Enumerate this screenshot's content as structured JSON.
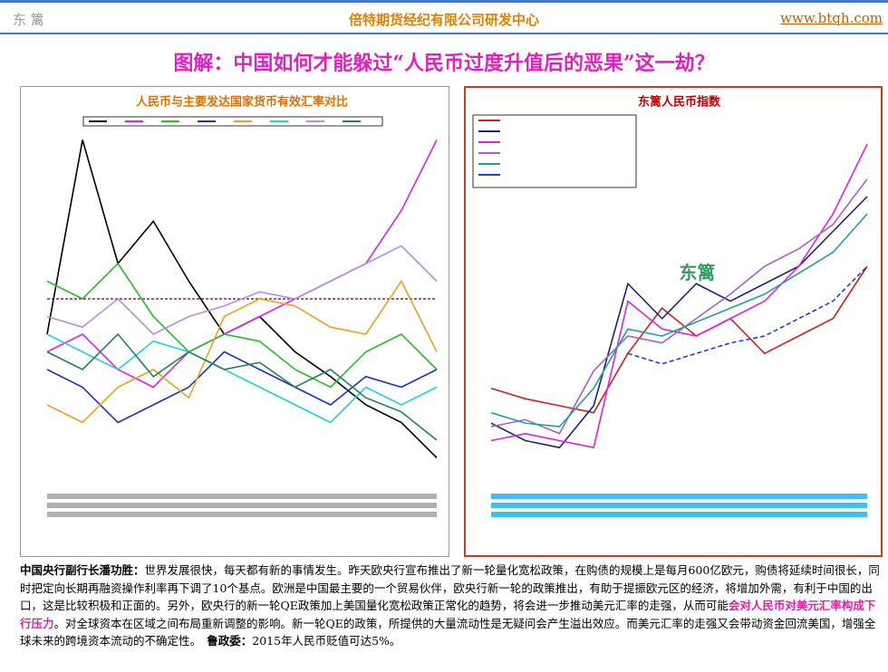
{
  "header": {
    "left": "东 篱",
    "center": "倍特期货经纪有限公司研发中心",
    "right": "www.btqh.com"
  },
  "title": "图解：中国如何才能躲过“人民币过度升值后的恶果”这一劫？",
  "chart_data": [
    {
      "type": "line",
      "title": "人民币与主要发达国家货币有效汇率对比",
      "ylim": [
        0,
        100
      ],
      "reference": 50,
      "reference_color": "#8b2252",
      "series": [
        {
          "color": "#000000",
          "values": [
            40,
            95,
            60,
            72,
            55,
            40,
            45,
            35,
            28,
            20,
            15,
            5
          ]
        },
        {
          "color": "#e020e0",
          "values": [
            35,
            40,
            30,
            25,
            35,
            40,
            45,
            50,
            55,
            60,
            75,
            95
          ]
        },
        {
          "color": "#20c020",
          "values": [
            55,
            50,
            60,
            45,
            35,
            40,
            38,
            30,
            25,
            35,
            40,
            30
          ]
        },
        {
          "color": "#2030c0",
          "values": [
            30,
            25,
            15,
            20,
            25,
            35,
            30,
            25,
            20,
            28,
            25,
            30
          ]
        },
        {
          "color": "#f0a020",
          "values": [
            20,
            15,
            25,
            30,
            22,
            45,
            50,
            48,
            42,
            40,
            55,
            35
          ]
        },
        {
          "color": "#20d0e0",
          "values": [
            40,
            35,
            30,
            38,
            35,
            30,
            25,
            20,
            15,
            25,
            20,
            25
          ]
        },
        {
          "color": "#b090e0",
          "values": [
            45,
            42,
            50,
            40,
            45,
            48,
            52,
            50,
            55,
            60,
            65,
            55
          ]
        },
        {
          "color": "#208060",
          "values": [
            35,
            30,
            40,
            28,
            35,
            30,
            32,
            25,
            30,
            22,
            18,
            10
          ]
        }
      ]
    },
    {
      "type": "line",
      "title": "东篱人民币指数",
      "ylim": [
        0,
        100
      ],
      "annotation": "东篱",
      "series": [
        {
          "color": "#d02020",
          "values": [
            25,
            22,
            20,
            18,
            35,
            48,
            40,
            45,
            35,
            40,
            45,
            60
          ]
        },
        {
          "color": "#202080",
          "values": [
            15,
            10,
            8,
            20,
            55,
            45,
            55,
            50,
            55,
            60,
            70,
            80
          ]
        },
        {
          "color": "#e020e0",
          "values": [
            10,
            12,
            10,
            8,
            50,
            42,
            40,
            45,
            50,
            60,
            75,
            95
          ]
        },
        {
          "color": "#a060d0",
          "values": [
            14,
            16,
            12,
            30,
            40,
            38,
            45,
            52,
            60,
            65,
            72,
            85
          ]
        },
        {
          "color": "#20a0a0",
          "values": [
            18,
            15,
            14,
            25,
            42,
            40,
            44,
            48,
            52,
            58,
            64,
            75
          ]
        },
        {
          "color": "#2040d0",
          "values": [
            null,
            null,
            null,
            null,
            35,
            32,
            35,
            38,
            40,
            45,
            50,
            60
          ],
          "dashed": true
        }
      ]
    }
  ],
  "body": [
    {
      "text": "中国央行副行长潘功胜：",
      "color": "#000000",
      "bold": true
    },
    {
      "text": "世界发展很快，每天都有新的事情发生。昨天欧央行宣布推出了新一轮量化宽松政策，在购债的规模上是每月600亿欧元，购债将延续时间很长，同时把定向长期再融资操作利率再下调了10个基点。欧洲是中国最主要的一个贸易伙伴，欧央行新一轮的政策推出，有助于提振欧元区的经济，将增加外需，有利于中国的出口，这是比较积极和正面的。另外，欧央行的新一轮QE政策加上美国量化宽松政策正常化的趋势，将会进一步推动美元汇率的走强，从而可能",
      "color": "#000000",
      "bold": false
    },
    {
      "text": "会对人民币对美元汇率构成下行压力",
      "color": "#e020a0",
      "bold": true
    },
    {
      "text": "。对全球资本在区域之间布局重新调整的影响。新一轮QE的政策，所提供的大量流动性是无疑问会产生溢出效应。而美元汇率的走强又会带动资金回流美国，增强全球未来的跨境资本流动的不确定性。",
      "color": "#000000",
      "bold": false
    },
    {
      "text": "　鲁政委：",
      "color": "#000000",
      "bold": true
    },
    {
      "text": "2015年人民币贬值可达5%。",
      "color": "#000000",
      "bold": false
    }
  ]
}
